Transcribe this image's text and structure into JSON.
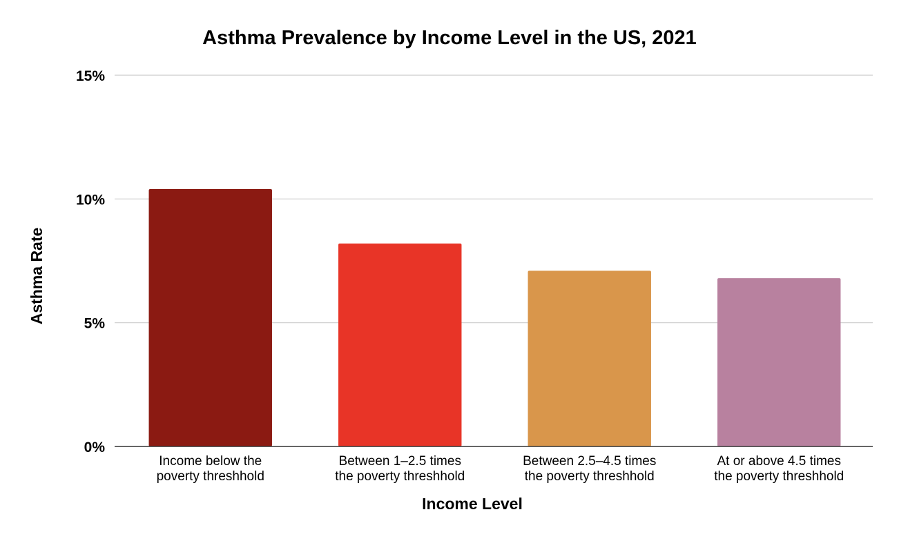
{
  "chart_data": {
    "type": "bar",
    "title": "Asthma Prevalence by Income Level in the US, 2021",
    "xlabel": "Income Level",
    "ylabel": "Asthma Rate",
    "categories": [
      [
        "Income below the",
        "poverty threshhold"
      ],
      [
        "Between 1–2.5 times",
        "the poverty threshhold"
      ],
      [
        "Between 2.5–4.5 times",
        "the poverty threshhold"
      ],
      [
        "At or above 4.5 times",
        "the poverty threshhold"
      ]
    ],
    "values": [
      10.4,
      8.2,
      7.1,
      6.8
    ],
    "colors": [
      "#8b1a12",
      "#e83427",
      "#d9964b",
      "#b8819f"
    ],
    "ylim": [
      0,
      15
    ],
    "yticks": [
      0,
      5,
      10,
      15
    ],
    "ytick_labels": [
      "0%",
      "5%",
      "10%",
      "15%"
    ],
    "grid": true,
    "legend": "none"
  }
}
